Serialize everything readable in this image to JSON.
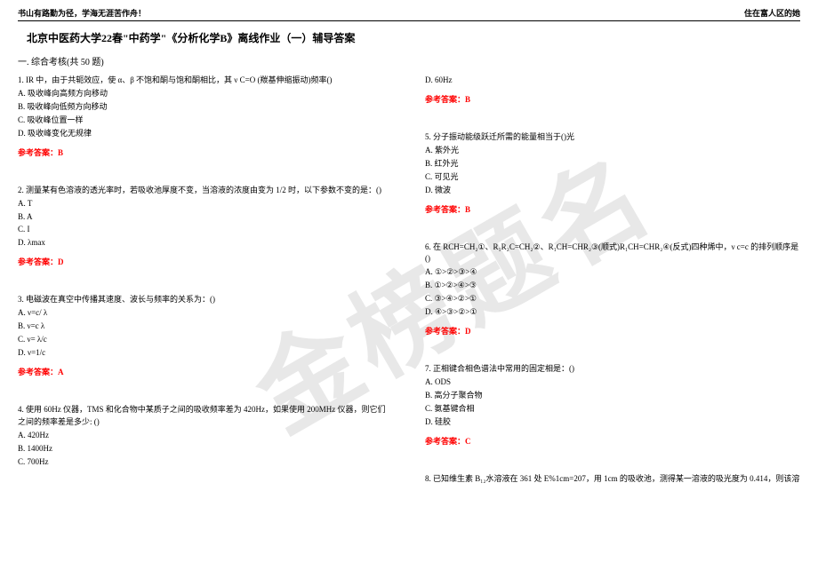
{
  "header": {
    "left": "书山有路勤为径，学海无涯苦作舟！",
    "right": "住在富人区的她"
  },
  "title": "北京中医药大学22春\"中药学\"《分析化学B》离线作业（一）辅导答案",
  "section": "一. 综合考核(共 50 题)",
  "watermark": "金榜题名",
  "answerLabel": "参考答案：",
  "q1": {
    "text": "1. IR 中，由于共轭效应，使 α、β 不饱和酮与饱和酮相比，其 ν C=O (羰基伸缩振动)频率()",
    "a": "A. 吸收峰向高频方向移动",
    "b": "B. 吸收峰向低频方向移动",
    "c": "C. 吸收峰位置一样",
    "d": "D. 吸收峰变化无规律",
    "ans": "B"
  },
  "q2": {
    "text": "2. 测量某有色溶液的透光率时，若吸收池厚度不变，当溶液的浓度由变为 1/2 时，以下参数不变的是：()",
    "a": "A. T",
    "b": "B. A",
    "c": "C. I",
    "d": "D. λmax",
    "ans": "D"
  },
  "q3": {
    "text": "3. 电磁波在真空中传播其速度、波长与频率的关系为：()",
    "a": "A. ν=c/ λ",
    "b": "B. ν=c λ",
    "c": "C. ν= λ/c",
    "d": "D. ν=1/c",
    "ans": "A"
  },
  "q4": {
    "text": "4. 使用 60Hz 仪器，TMS 和化合物中某质子之间的吸收频率差为 420Hz，如果使用 200MHz 仪器，则它们之间的频率差是多少: ()",
    "a": "A. 420Hz",
    "b": "B. 1400Hz",
    "c": "C. 700Hz",
    "d": "D. 60Hz",
    "ans": "B"
  },
  "q5": {
    "text": "5. 分子振动能级跃迁所需的能量相当于()光",
    "a": "A. 紫外光",
    "b": "B. 红外光",
    "c": "C. 可见光",
    "d": "D. 微波",
    "ans": "B"
  },
  "q6": {
    "text": "6. 在 RCH=CH₂①、R₁R₂C=CH₂②、R₁CH=CHR₂③(顺式)R₁CH=CHR₂④(反式)四种烯中，ν c=c 的排列顺序是()",
    "a": "A. ①>②>③>④",
    "b": "B. ①>②>④>③",
    "c": "C. ③>④>②>①",
    "d": "D. ④>③>②>①",
    "ans": "D"
  },
  "q7": {
    "text": "7. 正相键合相色谱法中常用的固定相是：()",
    "a": "A. ODS",
    "b": "B. 高分子聚合物",
    "c": "C. 氨基键合相",
    "d": "D. 硅胶",
    "ans": "C"
  },
  "q8": {
    "text": "8. 已知维生素 B₁₂水溶液在 361 处 E%1cm=207，用 1cm 的吸收池，测得某一溶液的吸光度为 0.414，则该溶"
  }
}
